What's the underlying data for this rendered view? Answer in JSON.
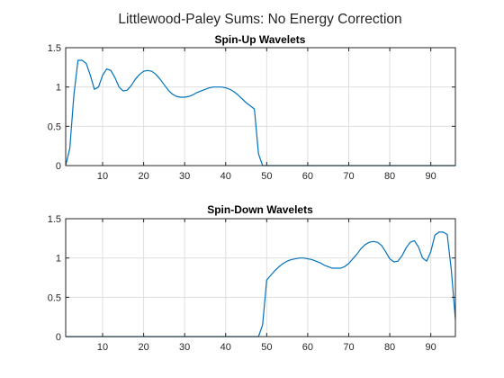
{
  "figure": {
    "title": "Littlewood-Paley Sums: No Energy Correction"
  },
  "colors": {
    "line": "#0072bd",
    "grid": "#dfdfdf",
    "axis": "#262626"
  },
  "chart_data": [
    {
      "type": "line",
      "title": "Spin-Up Wavelets",
      "xlabel": "",
      "ylabel": "",
      "xlim": [
        1,
        96
      ],
      "ylim": [
        0,
        1.5
      ],
      "xticks": [
        10,
        20,
        30,
        40,
        50,
        60,
        70,
        80,
        90
      ],
      "yticks": [
        0,
        0.5,
        1,
        1.5
      ],
      "grid": true,
      "series": [
        {
          "x": [
            1,
            2,
            3,
            4,
            5,
            6,
            7,
            8,
            9,
            10,
            11,
            12,
            13,
            14,
            15,
            16,
            17,
            18,
            19,
            20,
            21,
            22,
            23,
            24,
            25,
            26,
            27,
            28,
            29,
            30,
            31,
            32,
            33,
            34,
            35,
            36,
            37,
            38,
            39,
            40,
            41,
            42,
            43,
            44,
            45,
            46,
            47,
            48,
            49,
            50,
            55,
            60,
            65,
            70,
            75,
            80,
            85,
            90,
            96
          ],
          "y": [
            0.0,
            0.22,
            0.9,
            1.34,
            1.34,
            1.3,
            1.15,
            0.97,
            1.0,
            1.15,
            1.23,
            1.21,
            1.12,
            1.0,
            0.95,
            0.96,
            1.02,
            1.1,
            1.16,
            1.2,
            1.21,
            1.2,
            1.16,
            1.1,
            1.03,
            0.96,
            0.91,
            0.88,
            0.87,
            0.87,
            0.88,
            0.9,
            0.93,
            0.95,
            0.97,
            0.99,
            1.0,
            1.0,
            1.0,
            0.99,
            0.97,
            0.94,
            0.9,
            0.85,
            0.8,
            0.76,
            0.72,
            0.15,
            0.0,
            0.0,
            0.0,
            0.0,
            0.0,
            0.0,
            0.0,
            0.0,
            0.0,
            0.0,
            0.0
          ]
        }
      ]
    },
    {
      "type": "line",
      "title": "Spin-Down Wavelets",
      "xlabel": "",
      "ylabel": "",
      "xlim": [
        1,
        96
      ],
      "ylim": [
        0,
        1.5
      ],
      "xticks": [
        10,
        20,
        30,
        40,
        50,
        60,
        70,
        80,
        90
      ],
      "yticks": [
        0,
        0.5,
        1,
        1.5
      ],
      "grid": true,
      "series": [
        {
          "x": [
            1,
            10,
            20,
            30,
            40,
            47,
            48,
            49,
            50,
            51,
            52,
            53,
            54,
            55,
            56,
            57,
            58,
            59,
            60,
            61,
            62,
            63,
            64,
            65,
            66,
            67,
            68,
            69,
            70,
            71,
            72,
            73,
            74,
            75,
            76,
            77,
            78,
            79,
            80,
            81,
            82,
            83,
            84,
            85,
            86,
            87,
            88,
            89,
            90,
            91,
            92,
            93,
            94,
            95,
            96
          ],
          "y": [
            0.0,
            0.0,
            0.0,
            0.0,
            0.0,
            0.0,
            0.0,
            0.15,
            0.72,
            0.78,
            0.84,
            0.89,
            0.93,
            0.96,
            0.98,
            0.99,
            1.0,
            1.0,
            0.99,
            0.98,
            0.96,
            0.94,
            0.91,
            0.89,
            0.87,
            0.87,
            0.87,
            0.89,
            0.93,
            0.99,
            1.05,
            1.12,
            1.17,
            1.2,
            1.21,
            1.2,
            1.16,
            1.08,
            0.99,
            0.95,
            0.96,
            1.03,
            1.13,
            1.2,
            1.22,
            1.14,
            1.0,
            0.96,
            1.08,
            1.29,
            1.33,
            1.33,
            1.3,
            0.85,
            0.22
          ]
        }
      ]
    }
  ]
}
